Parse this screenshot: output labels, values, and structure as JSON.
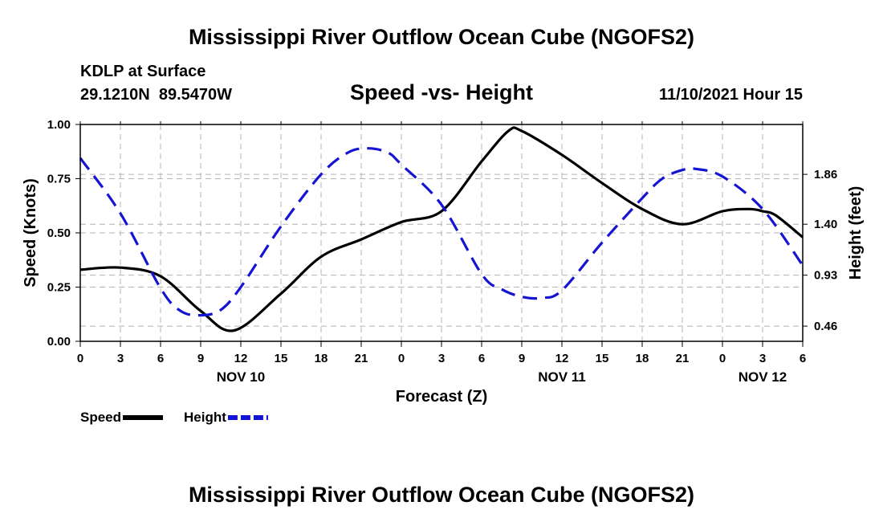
{
  "page_title": "Mississippi River Outflow Ocean Cube (NGOFS2)",
  "footer_title": "Mississippi River Outflow Ocean Cube (NGOFS2)",
  "station": {
    "name": "KDLP at Surface",
    "coords": "29.1210N  89.5470W",
    "datetime": "11/10/2021 Hour 15"
  },
  "colors": {
    "speed": "#000000",
    "height": "#1414d2",
    "grid": "#b4b4b4"
  },
  "chart_data": {
    "type": "line",
    "title": "Speed -vs- Height",
    "xlabel": "Forecast (Z)",
    "ylabel": "Speed (Knots)",
    "y2label": "Height (feet)",
    "ylim": [
      0,
      1
    ],
    "y2lim": [
      0.32,
      2.32
    ],
    "yticks": [
      0,
      0.25,
      0.5,
      0.75,
      1
    ],
    "ytick_labels": [
      "0.00",
      "0.25",
      "0.50",
      "0.75",
      "1.00"
    ],
    "y2ticks": [
      0.46,
      0.93,
      1.4,
      1.86
    ],
    "y2tick_labels": [
      "0.46",
      "0.93",
      "1.40",
      "1.86"
    ],
    "xlim": [
      0,
      54
    ],
    "xticks": [
      0,
      3,
      6,
      9,
      12,
      15,
      18,
      21,
      24,
      27,
      30,
      33,
      36,
      39,
      42,
      45,
      48,
      51,
      54
    ],
    "xtick_labels": [
      "0",
      "3",
      "6",
      "9",
      "12",
      "15",
      "18",
      "21",
      "0",
      "3",
      "6",
      "9",
      "12",
      "15",
      "18",
      "21",
      "0",
      "3",
      "6"
    ],
    "day_labels": [
      {
        "label": "NOV 10",
        "x": 12
      },
      {
        "label": "NOV 11",
        "x": 36
      },
      {
        "label": "NOV 12",
        "x": 51
      }
    ],
    "series": [
      {
        "name": "Speed",
        "axis": "left",
        "style": "solid",
        "x": [
          0,
          3,
          6,
          9,
          11.5,
          15,
          18,
          21,
          24,
          27,
          30,
          32,
          33,
          36,
          39,
          42,
          45,
          48,
          50,
          51,
          52,
          54
        ],
        "values": [
          0.33,
          0.34,
          0.3,
          0.14,
          0.05,
          0.22,
          0.39,
          0.47,
          0.55,
          0.6,
          0.83,
          0.97,
          0.97,
          0.86,
          0.73,
          0.61,
          0.54,
          0.6,
          0.61,
          0.6,
          0.58,
          0.48
        ]
      },
      {
        "name": "Height",
        "axis": "right",
        "style": "dashed",
        "x": [
          0,
          3,
          6,
          7.5,
          9,
          10.5,
          12,
          15,
          18,
          20,
          21.5,
          23,
          24,
          27,
          30,
          31.5,
          33,
          34.5,
          36,
          39,
          42,
          43.5,
          45,
          46,
          48,
          51,
          54
        ],
        "values": [
          2.01,
          1.5,
          0.81,
          0.6,
          0.56,
          0.61,
          0.82,
          1.38,
          1.86,
          2.06,
          2.1,
          2.06,
          1.95,
          1.58,
          0.94,
          0.8,
          0.73,
          0.72,
          0.79,
          1.23,
          1.64,
          1.82,
          1.9,
          1.91,
          1.84,
          1.54,
          1.02
        ]
      }
    ],
    "legend": [
      {
        "label": "Speed",
        "series": "Speed"
      },
      {
        "label": "Height",
        "series": "Height"
      }
    ],
    "legend_position": "bottom-left",
    "grid": true
  }
}
